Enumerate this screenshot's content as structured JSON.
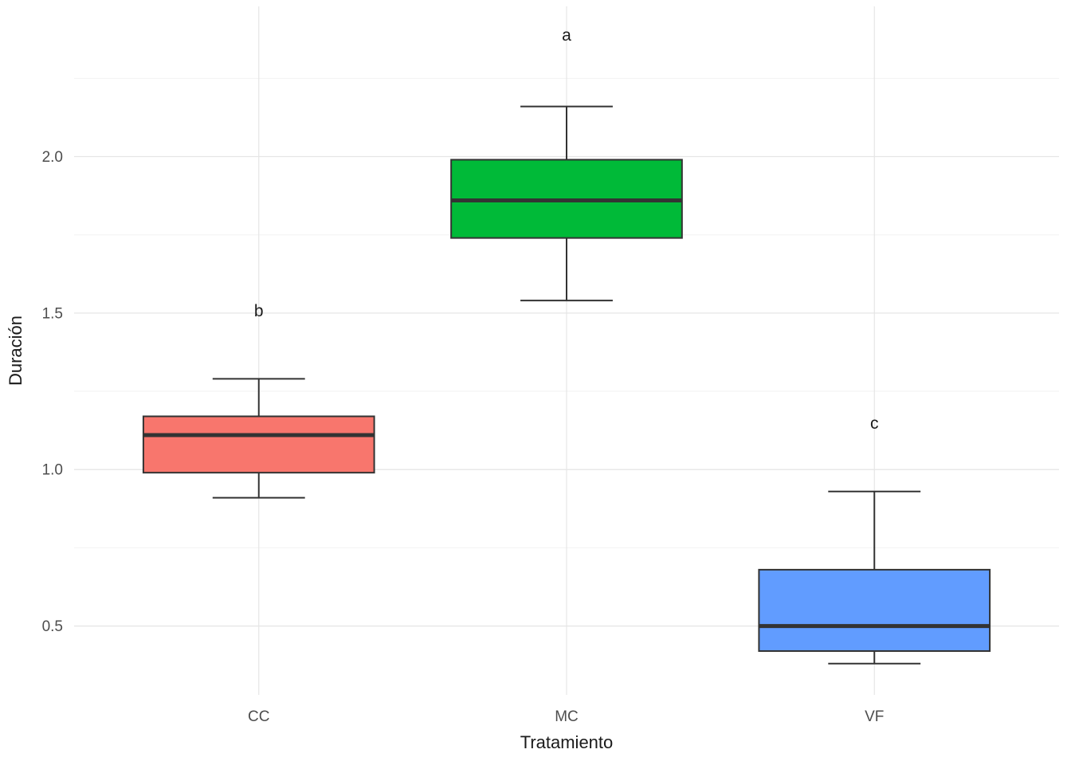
{
  "chart_data": {
    "type": "boxplot",
    "title": "",
    "xlabel": "Tratamiento",
    "ylabel": "Duración",
    "categories": [
      "CC",
      "MC",
      "VF"
    ],
    "y_ticks": [
      "0.5",
      "1.0",
      "1.5",
      "2.0"
    ],
    "y_tick_values": [
      0.5,
      1.0,
      1.5,
      2.0
    ],
    "y_minor_values": [
      0.75,
      1.25,
      1.75,
      2.25
    ],
    "ylim": [
      0.28,
      2.48
    ],
    "grid": true,
    "legend": "none",
    "series": [
      {
        "category": "CC",
        "significance_letter": "b",
        "letter_y": 1.49,
        "color": "#F8766D",
        "whisker_low": 0.91,
        "q1": 0.99,
        "median": 1.11,
        "q3": 1.17,
        "whisker_high": 1.29
      },
      {
        "category": "MC",
        "significance_letter": "a",
        "letter_y": 2.37,
        "color": "#00BA38",
        "whisker_low": 1.54,
        "q1": 1.74,
        "median": 1.86,
        "q3": 1.99,
        "whisker_high": 2.16
      },
      {
        "category": "VF",
        "significance_letter": "c",
        "letter_y": 1.13,
        "color": "#619CFF",
        "whisker_low": 0.38,
        "q1": 0.42,
        "median": 0.5,
        "q3": 0.68,
        "whisker_high": 0.93
      }
    ],
    "colors": {
      "background": "#ffffff",
      "grid_major": "#e5e5e5",
      "grid_minor": "#f2f2f2",
      "box_stroke": "#333333",
      "axis_text": "#4d4d4d",
      "title_text": "#1a1a1a"
    }
  }
}
